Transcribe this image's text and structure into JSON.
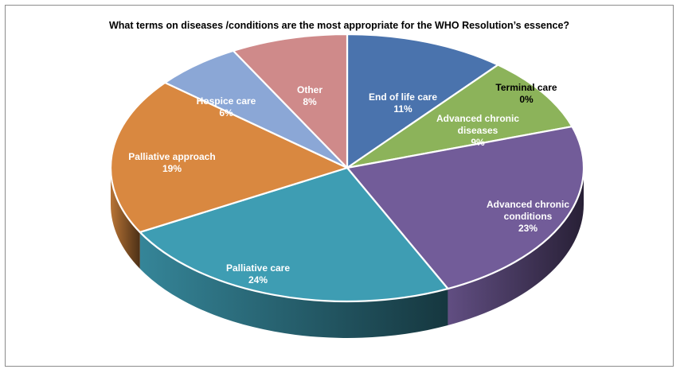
{
  "chart_data": {
    "type": "pie",
    "title": "What terms on diseases /conditions are the most appropriate for the WHO Resolution’s essence?",
    "slices": [
      {
        "label": "End of life care",
        "value": 11,
        "display": "11%",
        "color": "#4a73ad"
      },
      {
        "label": "Terminal care",
        "value": 0,
        "display": "0%",
        "color": "#c0504d"
      },
      {
        "label": "Advanced chronic diseases",
        "value": 9,
        "display": "9%",
        "color": "#8cb35a"
      },
      {
        "label": "Advanced chronic conditions",
        "value": 23,
        "display": "23%",
        "color": "#725c99"
      },
      {
        "label": "Palliative care",
        "value": 24,
        "display": "24%",
        "color": "#3e9db3"
      },
      {
        "label": "Palliative approach",
        "value": 19,
        "display": "19%",
        "color": "#d98840"
      },
      {
        "label": "Hospice care",
        "value": 6,
        "display": "6%",
        "color": "#8ba7d6"
      },
      {
        "label": "Other",
        "value": 8,
        "display": "8%",
        "color": "#cf8a8a"
      }
    ],
    "style": "3d-pie",
    "legend": "none",
    "data_labels": "on-slice"
  }
}
